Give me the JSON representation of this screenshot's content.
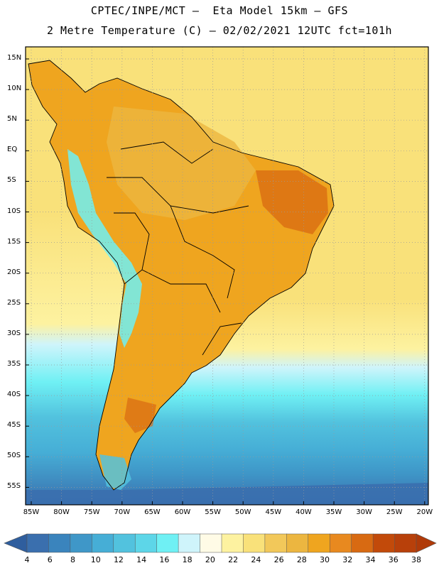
{
  "title_line1": "CPTEC/INPE/MCT –  Eta Model 15km – GFS",
  "title_line2": "2 Metre Temperature (C) – 02/02/2021 12UTC fct=101h",
  "lat_labels": [
    "15N",
    "10N",
    "5N",
    "EQ",
    "5S",
    "10S",
    "15S",
    "20S",
    "25S",
    "30S",
    "35S",
    "40S",
    "45S",
    "50S",
    "55S"
  ],
  "lon_labels": [
    "85W",
    "80W",
    "75W",
    "70W",
    "65W",
    "60W",
    "55W",
    "50W",
    "45W",
    "40W",
    "35W",
    "30W",
    "25W",
    "20W"
  ],
  "colorbar": {
    "values": [
      "4",
      "6",
      "8",
      "10",
      "12",
      "14",
      "16",
      "18",
      "20",
      "22",
      "24",
      "26",
      "28",
      "30",
      "32",
      "34",
      "36",
      "38"
    ],
    "colors": [
      "#3a6fae",
      "#3a84bd",
      "#3f97c8",
      "#46aed6",
      "#52c2de",
      "#5dd6e8",
      "#6ff0f4",
      "#cff4fb",
      "#fffbe6",
      "#fdf2a0",
      "#f9e17a",
      "#f2c85a",
      "#ecb640",
      "#efa51f",
      "#e8891f",
      "#d86a12",
      "#c24a0a",
      "#b8400a"
    ]
  },
  "map": {
    "projection": "lat-lon",
    "lat_range": [
      "57S",
      "16N"
    ],
    "lon_range": [
      "86W",
      "20W"
    ],
    "grid": "dotted"
  }
}
